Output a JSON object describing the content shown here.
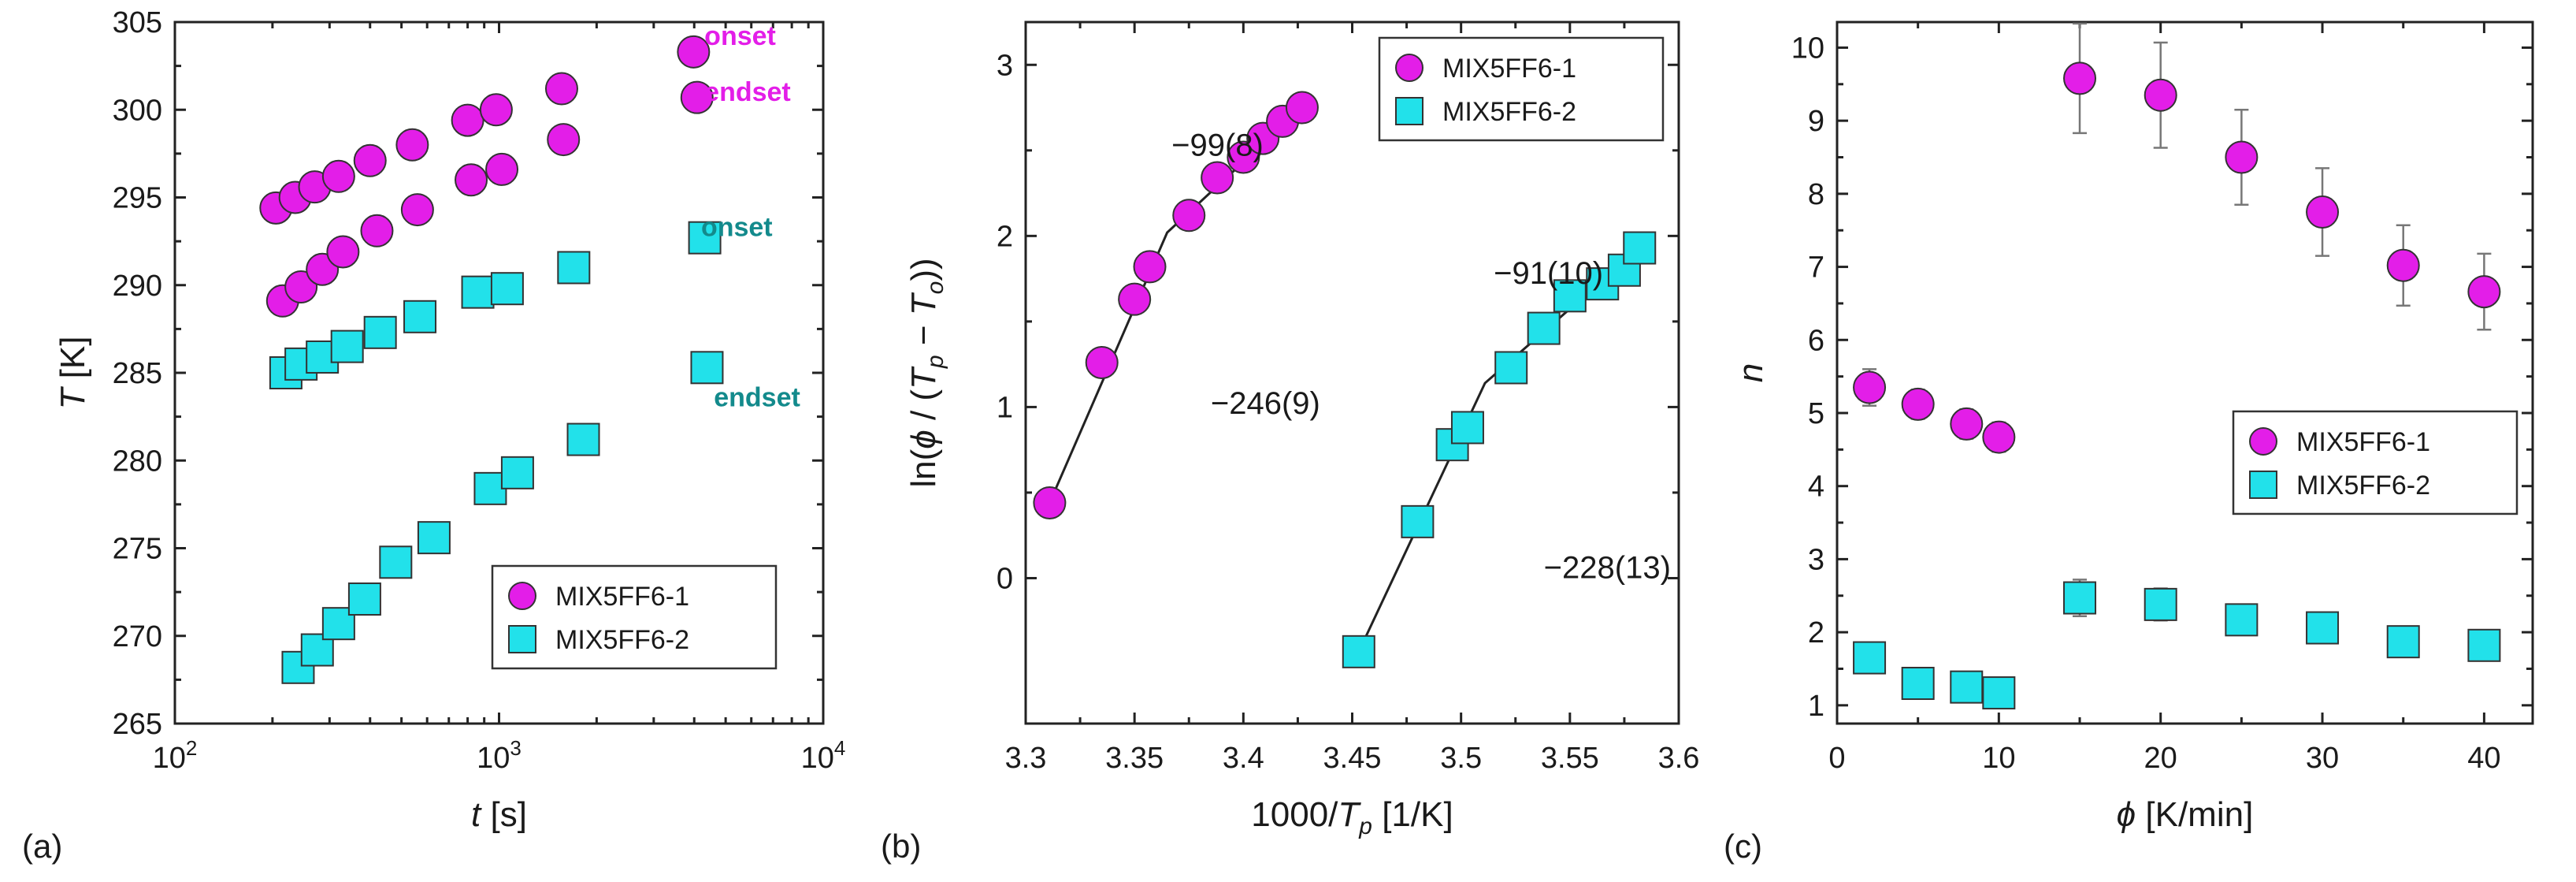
{
  "colors": {
    "series1": "#e31ee8",
    "series2": "#22e1ea",
    "onset_label_1": "#e31ee8",
    "onset_label_2": "#138a8c",
    "edge": "#333333"
  },
  "chart_data": [
    {
      "panel": "(a)",
      "type": "scatter",
      "xscale": "log",
      "xlim": [
        100,
        10000
      ],
      "ylim": [
        265,
        305
      ],
      "xticks": [
        100,
        1000,
        10000
      ],
      "xtick_labels": [
        [
          "10",
          "2"
        ],
        [
          "10",
          "3"
        ],
        [
          "10",
          "4"
        ]
      ],
      "yticks": [
        265,
        270,
        275,
        280,
        285,
        290,
        295,
        300,
        305
      ],
      "ytick_labels": [
        "265",
        "270",
        "275",
        "280",
        "285",
        "290",
        "295",
        "300",
        "305"
      ],
      "xlabel": {
        "italic": "t",
        "rest": " [s]"
      },
      "ylabel": {
        "italic": "T",
        "rest": " [K]"
      },
      "legend": {
        "position": "bottom-right",
        "entries": [
          "MIX5FF6-1",
          "MIX5FF6-2"
        ]
      },
      "annotations": [
        {
          "text": "onset",
          "x": 4300,
          "y": 303.7,
          "color": "series1"
        },
        {
          "text": "endset",
          "x": 4300,
          "y": 300.5,
          "color": "series1"
        },
        {
          "text": "onset",
          "x": 4200,
          "y": 292.8,
          "color": "series2"
        },
        {
          "text": "endset",
          "x": 4600,
          "y": 283.1,
          "color": "series2"
        }
      ],
      "series": [
        {
          "name": "MIX5FF6-1 onset",
          "marker": "circle",
          "color": "series1",
          "x": [
            205,
            235,
            270,
            320,
            400,
            540,
            800,
            980,
            1560,
            3980
          ],
          "y": [
            294.4,
            295.0,
            295.6,
            296.2,
            297.1,
            298.0,
            299.4,
            300.0,
            301.2,
            303.3
          ]
        },
        {
          "name": "MIX5FF6-1 endset",
          "marker": "circle",
          "color": "series1",
          "x": [
            215,
            245,
            285,
            330,
            420,
            560,
            820,
            1020,
            1580,
            4080
          ],
          "y": [
            289.1,
            289.9,
            290.9,
            291.9,
            293.1,
            294.3,
            296.0,
            296.6,
            298.3,
            300.7
          ]
        },
        {
          "name": "MIX5FF6-2 onset",
          "marker": "square",
          "color": "series2",
          "x": [
            220,
            245,
            285,
            340,
            430,
            570,
            860,
            1060,
            1700,
            4310
          ],
          "y": [
            285.0,
            285.5,
            285.9,
            286.5,
            287.3,
            288.2,
            289.6,
            289.8,
            291.0,
            292.7
          ]
        },
        {
          "name": "MIX5FF6-2 endset",
          "marker": "square",
          "color": "series2",
          "x": [
            240,
            275,
            320,
            385,
            480,
            630,
            940,
            1140,
            1820,
            4380
          ],
          "y": [
            268.2,
            269.2,
            270.7,
            272.1,
            274.2,
            275.6,
            278.4,
            279.3,
            281.2,
            285.3
          ]
        }
      ]
    },
    {
      "panel": "(b)",
      "type": "scatter",
      "xlim": [
        3.3,
        3.6
      ],
      "ylim": [
        -0.85,
        3.25
      ],
      "xticks": [
        3.3,
        3.35,
        3.4,
        3.45,
        3.5,
        3.55,
        3.6
      ],
      "xtick_labels": [
        "3.3",
        "3.35",
        "3.4",
        "3.45",
        "3.5",
        "3.55",
        "3.6"
      ],
      "yticks": [
        0,
        1,
        2,
        3
      ],
      "ytick_labels": [
        "0",
        "1",
        "2",
        "3"
      ],
      "xlabel": {
        "pre": "1000/",
        "italic": "T",
        "sub": "p",
        "rest": " [1/K]"
      },
      "ylabel": {
        "text": "ln(ϕ / (T_p − T_o))"
      },
      "legend": {
        "position": "top-right",
        "entries": [
          "MIX5FF6-1",
          "MIX5FF6-2"
        ]
      },
      "annotations": [
        {
          "text": "−99(8)",
          "x": 3.367,
          "y": 2.47
        },
        {
          "text": "−246(9)",
          "x": 3.385,
          "y": 0.96
        },
        {
          "text": "−91(10)",
          "x": 3.515,
          "y": 1.72
        },
        {
          "text": "−228(13)",
          "x": 3.538,
          "y": 0.0
        }
      ],
      "series": [
        {
          "name": "MIX5FF6-1",
          "marker": "circle",
          "color": "series1",
          "x": [
            3.311,
            3.335,
            3.35,
            3.357,
            3.375,
            3.388,
            3.4,
            3.409,
            3.418,
            3.427
          ],
          "y": [
            0.44,
            1.26,
            1.63,
            1.82,
            2.12,
            2.34,
            2.46,
            2.57,
            2.67,
            2.75
          ]
        },
        {
          "name": "MIX5FF6-2",
          "marker": "square",
          "color": "series2",
          "x": [
            3.453,
            3.48,
            3.496,
            3.503,
            3.523,
            3.538,
            3.55,
            3.565,
            3.575,
            3.582
          ],
          "y": [
            -0.43,
            0.33,
            0.78,
            0.88,
            1.23,
            1.46,
            1.65,
            1.72,
            1.8,
            1.93
          ]
        }
      ],
      "fits": [
        {
          "x": [
            3.311,
            3.365,
            3.427
          ],
          "y": [
            0.44,
            2.02,
            2.75
          ]
        },
        {
          "x": [
            3.453,
            3.511,
            3.582
          ],
          "y": [
            -0.43,
            1.14,
            1.93
          ]
        }
      ]
    },
    {
      "panel": "(c)",
      "type": "scatter",
      "xlim": [
        0,
        43
      ],
      "ylim": [
        0.75,
        10.35
      ],
      "xticks": [
        0,
        10,
        20,
        30,
        40
      ],
      "xtick_labels": [
        "0",
        "10",
        "20",
        "30",
        "40"
      ],
      "yticks": [
        1,
        2,
        3,
        4,
        5,
        6,
        7,
        8,
        9,
        10
      ],
      "ytick_labels": [
        "1",
        "2",
        "3",
        "4",
        "5",
        "6",
        "7",
        "8",
        "9",
        "10"
      ],
      "xlabel": {
        "italic": "ϕ",
        "rest": " [K/min]"
      },
      "ylabel": {
        "italic": "n"
      },
      "legend": {
        "position": "center-right",
        "entries": [
          "MIX5FF6-1",
          "MIX5FF6-2"
        ]
      },
      "series": [
        {
          "name": "MIX5FF6-1",
          "marker": "circle",
          "color": "series1",
          "x": [
            2,
            5,
            8,
            10,
            15,
            20,
            25,
            30,
            35,
            40
          ],
          "y": [
            5.35,
            5.12,
            4.85,
            4.67,
            9.58,
            9.35,
            8.5,
            7.75,
            7.02,
            6.66
          ],
          "err": [
            0.25,
            0.2,
            0.2,
            0.2,
            0.75,
            0.72,
            0.65,
            0.6,
            0.55,
            0.52
          ]
        },
        {
          "name": "MIX5FF6-2",
          "marker": "square",
          "color": "series2",
          "x": [
            2,
            5,
            8,
            10,
            15,
            20,
            25,
            30,
            35,
            40
          ],
          "y": [
            1.65,
            1.3,
            1.25,
            1.17,
            2.47,
            2.38,
            2.17,
            2.06,
            1.87,
            1.82
          ],
          "err": [
            0.1,
            0.1,
            0.1,
            0.1,
            0.25,
            0.22,
            0.2,
            0.2,
            0.2,
            0.2
          ]
        }
      ]
    }
  ]
}
